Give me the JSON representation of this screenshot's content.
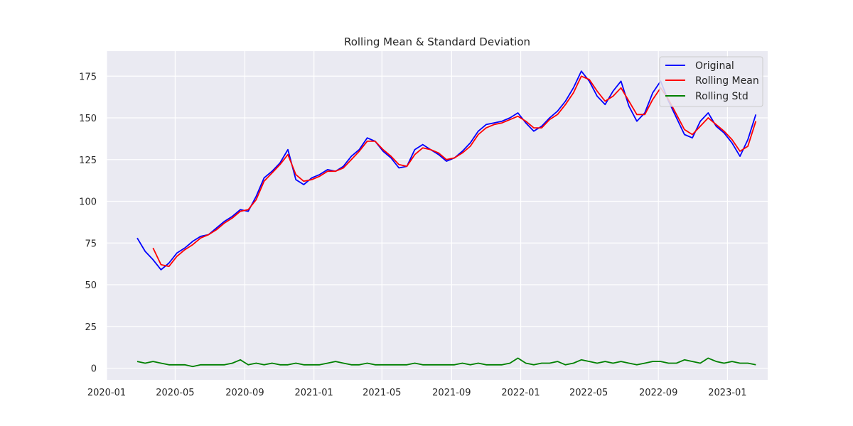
{
  "chart_data": {
    "type": "line",
    "title": "Rolling Mean & Standard Deviation",
    "xlabel": "",
    "ylabel": "",
    "grid": true,
    "legend_placement": "top-right",
    "xlim": [
      "2020-01-01",
      "2023-03-13"
    ],
    "ylim": [
      -7,
      190
    ],
    "x_ticks": [
      "2020-01",
      "2020-05",
      "2020-09",
      "2021-01",
      "2021-05",
      "2021-09",
      "2022-01",
      "2022-05",
      "2022-09",
      "2023-01"
    ],
    "y_ticks": [
      0,
      25,
      50,
      75,
      100,
      125,
      150,
      175
    ],
    "colors": {
      "original": "#0000ff",
      "rolling_mean": "#ff0000",
      "rolling_std": "#008000",
      "background": "#eaeaf2",
      "grid": "#ffffff"
    },
    "x": [
      "2020-02-24",
      "2020-03-09",
      "2020-03-23",
      "2020-04-06",
      "2020-04-20",
      "2020-05-04",
      "2020-05-18",
      "2020-06-01",
      "2020-06-15",
      "2020-06-29",
      "2020-07-13",
      "2020-07-27",
      "2020-08-10",
      "2020-08-24",
      "2020-09-07",
      "2020-09-21",
      "2020-10-05",
      "2020-10-19",
      "2020-11-02",
      "2020-11-16",
      "2020-11-30",
      "2020-12-14",
      "2020-12-28",
      "2021-01-11",
      "2021-01-25",
      "2021-02-08",
      "2021-02-22",
      "2021-03-08",
      "2021-03-22",
      "2021-04-05",
      "2021-04-19",
      "2021-05-03",
      "2021-05-17",
      "2021-05-31",
      "2021-06-14",
      "2021-06-28",
      "2021-07-12",
      "2021-07-26",
      "2021-08-09",
      "2021-08-23",
      "2021-09-06",
      "2021-09-20",
      "2021-10-04",
      "2021-10-18",
      "2021-11-01",
      "2021-11-15",
      "2021-11-29",
      "2021-12-13",
      "2021-12-27",
      "2022-01-10",
      "2022-01-24",
      "2022-02-07",
      "2022-02-21",
      "2022-03-07",
      "2022-03-21",
      "2022-04-04",
      "2022-04-18",
      "2022-05-02",
      "2022-05-16",
      "2022-05-30",
      "2022-06-13",
      "2022-06-27",
      "2022-07-11",
      "2022-07-25",
      "2022-08-08",
      "2022-08-22",
      "2022-09-05",
      "2022-09-19",
      "2022-10-03",
      "2022-10-17",
      "2022-10-31",
      "2022-11-14",
      "2022-11-28",
      "2022-12-12",
      "2022-12-26",
      "2023-01-09",
      "2023-01-23",
      "2023-02-06",
      "2023-02-20"
    ],
    "series": [
      {
        "name": "Original",
        "values": [
          78,
          70,
          65,
          59,
          63,
          69,
          72,
          76,
          79,
          80,
          84,
          88,
          91,
          95,
          94,
          103,
          114,
          118,
          123,
          131,
          113,
          110,
          114,
          116,
          119,
          118,
          121,
          127,
          131,
          138,
          136,
          130,
          126,
          120,
          121,
          131,
          134,
          131,
          128,
          124,
          126,
          130,
          135,
          142,
          146,
          147,
          148,
          150,
          153,
          147,
          142,
          145,
          150,
          154,
          160,
          168,
          178,
          172,
          163,
          158,
          166,
          172,
          157,
          148,
          153,
          165,
          172,
          160,
          150,
          140,
          138,
          148,
          153,
          145,
          141,
          135,
          127,
          137,
          152
        ]
      },
      {
        "name": "Rolling Mean",
        "values": [
          null,
          null,
          72,
          62,
          61,
          67,
          71,
          74,
          78,
          80,
          83,
          87,
          90,
          94,
          95,
          101,
          112,
          117,
          122,
          128,
          116,
          112,
          113,
          115,
          118,
          118,
          120,
          125,
          130,
          136,
          136,
          131,
          127,
          122,
          121,
          128,
          132,
          131,
          129,
          125,
          126,
          129,
          133,
          140,
          144,
          146,
          147,
          149,
          151,
          148,
          144,
          144,
          149,
          152,
          158,
          165,
          175,
          173,
          166,
          160,
          163,
          168,
          160,
          152,
          152,
          161,
          168,
          161,
          152,
          143,
          140,
          145,
          150,
          146,
          142,
          137,
          130,
          133,
          148
        ]
      },
      {
        "name": "Rolling Std",
        "values": [
          4,
          3,
          4,
          3,
          2,
          2,
          2,
          1,
          2,
          2,
          2,
          2,
          3,
          5,
          2,
          3,
          2,
          3,
          2,
          2,
          3,
          2,
          2,
          2,
          3,
          4,
          3,
          2,
          2,
          3,
          2,
          2,
          2,
          2,
          2,
          3,
          2,
          2,
          2,
          2,
          2,
          3,
          2,
          3,
          2,
          2,
          2,
          3,
          6,
          3,
          2,
          3,
          3,
          4,
          2,
          3,
          5,
          4,
          3,
          4,
          3,
          4,
          3,
          2,
          3,
          4,
          4,
          3,
          3,
          5,
          4,
          3,
          6,
          4,
          3,
          4,
          3,
          3,
          2
        ]
      }
    ]
  }
}
